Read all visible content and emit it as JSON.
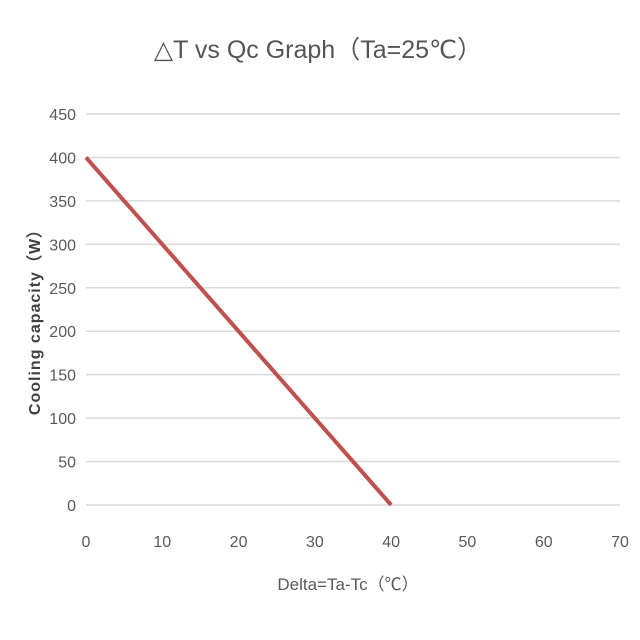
{
  "chart_data": {
    "type": "line",
    "title": "△T vs Qc Graph（Ta=25℃）",
    "xlabel": "Delta=Ta-Tc（℃）",
    "ylabel": "Cooling capacity（W）",
    "xlim": [
      0,
      70
    ],
    "ylim": [
      0,
      450
    ],
    "x_ticks": [
      0,
      10,
      20,
      30,
      40,
      50,
      60,
      70
    ],
    "y_ticks": [
      0,
      50,
      100,
      150,
      200,
      250,
      300,
      350,
      400,
      450
    ],
    "grid": "horizontal",
    "legend": "none",
    "series": [
      {
        "x": [
          0,
          40
        ],
        "y": [
          400,
          0
        ],
        "color": "#c0504d"
      }
    ]
  }
}
